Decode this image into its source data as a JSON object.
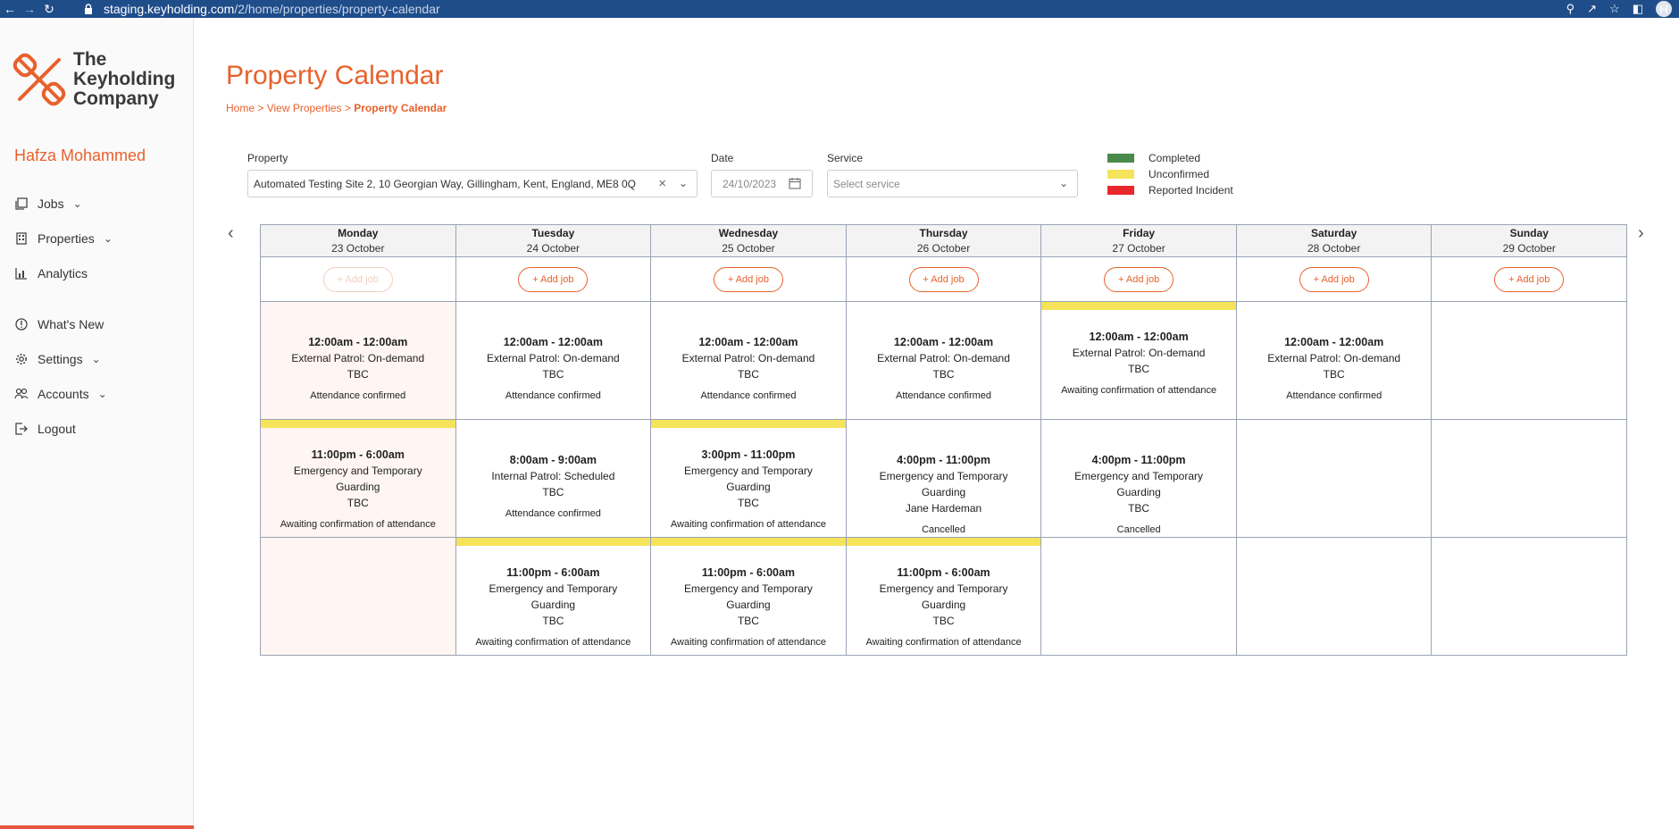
{
  "browser": {
    "url_host": "staging.keyholding.com",
    "url_path": "/2/home/properties/property-calendar",
    "avatar_initial": "H"
  },
  "sidebar": {
    "logo_lines": [
      "The",
      "Keyholding",
      "Company"
    ],
    "user_name": "Hafza Mohammed",
    "items": [
      {
        "label": "Jobs",
        "icon": "jobs-icon",
        "has_chevron": true
      },
      {
        "label": "Properties",
        "icon": "properties-icon",
        "has_chevron": true
      },
      {
        "label": "Analytics",
        "icon": "analytics-icon",
        "has_chevron": false
      },
      {
        "label": "What's New",
        "icon": "info-icon",
        "has_chevron": false
      },
      {
        "label": "Settings",
        "icon": "gear-icon",
        "has_chevron": true
      },
      {
        "label": "Accounts",
        "icon": "users-icon",
        "has_chevron": true
      },
      {
        "label": "Logout",
        "icon": "logout-icon",
        "has_chevron": false
      }
    ]
  },
  "page": {
    "title": "Property Calendar",
    "breadcrumb": {
      "home": "Home",
      "sep": ">",
      "view": "View Properties",
      "current": "Property Calendar"
    }
  },
  "filters": {
    "property_label": "Property",
    "property_value": "Automated Testing Site 2, 10 Georgian Way, Gillingham, Kent, England, ME8 0Q",
    "date_label": "Date",
    "date_value": "24/10/2023",
    "service_label": "Service",
    "service_placeholder": "Select service"
  },
  "legend": [
    {
      "label": "Completed",
      "color": "#4a8a4a"
    },
    {
      "label": "Unconfirmed",
      "color": "#f5e35a"
    },
    {
      "label": "Reported Incident",
      "color": "#e8282a"
    }
  ],
  "calendar": {
    "add_label": "+ Add job",
    "days": [
      {
        "day": "Monday",
        "date": "23 October",
        "add_disabled": true
      },
      {
        "day": "Tuesday",
        "date": "24 October",
        "add_disabled": false
      },
      {
        "day": "Wednesday",
        "date": "25 October",
        "add_disabled": false
      },
      {
        "day": "Thursday",
        "date": "26 October",
        "add_disabled": false
      },
      {
        "day": "Friday",
        "date": "27 October",
        "add_disabled": false
      },
      {
        "day": "Saturday",
        "date": "28 October",
        "add_disabled": false
      },
      {
        "day": "Sunday",
        "date": "29 October",
        "add_disabled": false
      }
    ],
    "rows": [
      [
        {
          "past": true,
          "unconfirmed": false,
          "time": "12:00am - 12:00am",
          "lines": [
            "External Patrol: On-demand",
            "TBC"
          ],
          "status": "Attendance confirmed"
        },
        {
          "past": false,
          "unconfirmed": false,
          "time": "12:00am - 12:00am",
          "lines": [
            "External Patrol: On-demand",
            "TBC"
          ],
          "status": "Attendance confirmed"
        },
        {
          "past": false,
          "unconfirmed": false,
          "time": "12:00am - 12:00am",
          "lines": [
            "External Patrol: On-demand",
            "TBC"
          ],
          "status": "Attendance confirmed"
        },
        {
          "past": false,
          "unconfirmed": false,
          "time": "12:00am - 12:00am",
          "lines": [
            "External Patrol: On-demand",
            "TBC"
          ],
          "status": "Attendance confirmed"
        },
        {
          "past": false,
          "unconfirmed": true,
          "time": "12:00am - 12:00am",
          "lines": [
            "External Patrol: On-demand",
            "TBC"
          ],
          "status": "Awaiting confirmation of attendance"
        },
        {
          "past": false,
          "unconfirmed": false,
          "time": "12:00am - 12:00am",
          "lines": [
            "External Patrol: On-demand",
            "TBC"
          ],
          "status": "Attendance confirmed"
        },
        {
          "past": false,
          "empty": true
        }
      ],
      [
        {
          "past": true,
          "unconfirmed": true,
          "time": "11:00pm - 6:00am",
          "lines": [
            "Emergency and Temporary",
            "Guarding",
            "TBC"
          ],
          "status": "Awaiting confirmation of attendance"
        },
        {
          "past": false,
          "unconfirmed": false,
          "time": "8:00am - 9:00am",
          "lines": [
            "Internal Patrol: Scheduled",
            "TBC"
          ],
          "status": "Attendance confirmed"
        },
        {
          "past": false,
          "unconfirmed": true,
          "time": "3:00pm - 11:00pm",
          "lines": [
            "Emergency and Temporary",
            "Guarding",
            "TBC"
          ],
          "status": "Awaiting confirmation of attendance"
        },
        {
          "past": false,
          "unconfirmed": false,
          "time": "4:00pm - 11:00pm",
          "lines": [
            "Emergency and Temporary",
            "Guarding",
            "Jane Hardeman"
          ],
          "status": "Cancelled"
        },
        {
          "past": false,
          "unconfirmed": false,
          "time": "4:00pm - 11:00pm",
          "lines": [
            "Emergency and Temporary",
            "Guarding",
            "TBC"
          ],
          "status": "Cancelled"
        },
        {
          "past": false,
          "empty": true
        },
        {
          "past": false,
          "empty": true
        }
      ],
      [
        {
          "past": true,
          "empty": true
        },
        {
          "past": false,
          "unconfirmed": true,
          "time": "11:00pm - 6:00am",
          "lines": [
            "Emergency and Temporary",
            "Guarding",
            "TBC"
          ],
          "status": "Awaiting confirmation of attendance"
        },
        {
          "past": false,
          "unconfirmed": true,
          "time": "11:00pm - 6:00am",
          "lines": [
            "Emergency and Temporary",
            "Guarding",
            "TBC"
          ],
          "status": "Awaiting confirmation of attendance"
        },
        {
          "past": false,
          "unconfirmed": true,
          "time": "11:00pm - 6:00am",
          "lines": [
            "Emergency and Temporary",
            "Guarding",
            "TBC"
          ],
          "status": "Awaiting confirmation of attendance"
        },
        {
          "past": false,
          "empty": true
        },
        {
          "past": false,
          "empty": true
        },
        {
          "past": false,
          "empty": true
        }
      ]
    ]
  }
}
